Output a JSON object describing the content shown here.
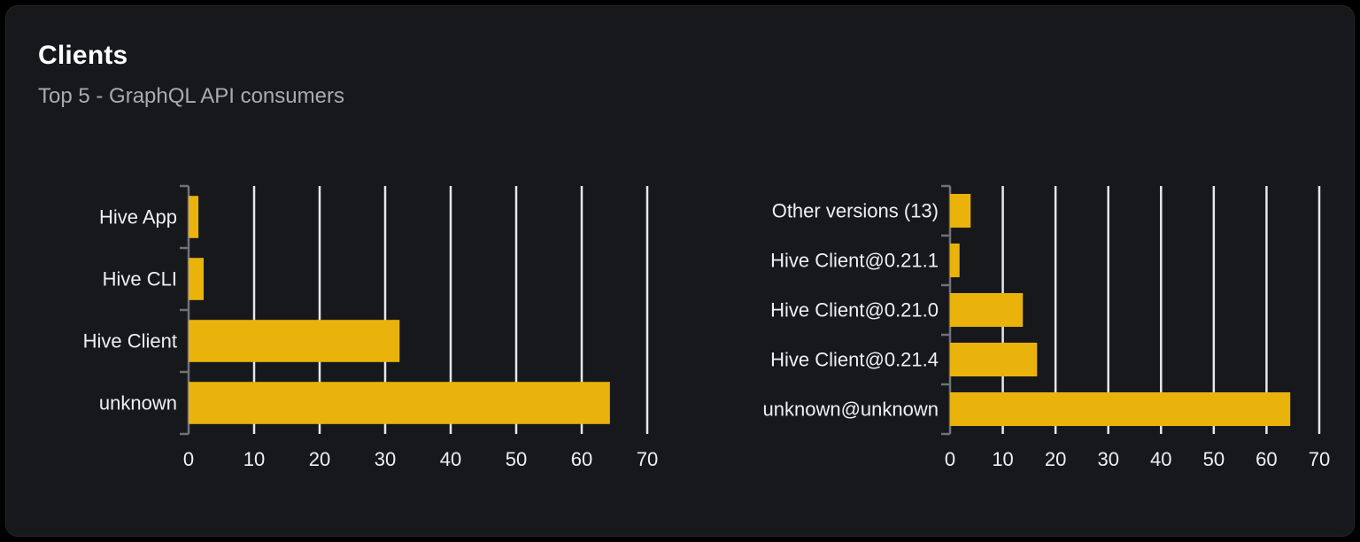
{
  "header": {
    "title": "Clients",
    "subtitle": "Top 5 - GraphQL API consumers"
  },
  "colors": {
    "page_bg": "#000000",
    "card_bg": "#16181c",
    "card_border": "#24262c",
    "title": "#ffffff",
    "subtitle": "#a7acb2",
    "bar": "#eab30c",
    "gridline": "#e5e7eb",
    "axis": "#71717a",
    "label": "#eef0f2"
  },
  "chart_data": [
    {
      "type": "bar",
      "orientation": "horizontal",
      "name": "clients-by-name",
      "categories": [
        "Hive App",
        "Hive CLI",
        "Hive Client",
        "unknown"
      ],
      "values": [
        1.5,
        2.3,
        32.2,
        64.3
      ],
      "xticks": [
        0,
        10,
        20,
        30,
        40,
        50,
        60,
        70
      ],
      "xlim": [
        0,
        70
      ],
      "grid": true,
      "legend": false,
      "xlabel": "",
      "ylabel": ""
    },
    {
      "type": "bar",
      "orientation": "horizontal",
      "name": "clients-by-version",
      "categories": [
        "Other versions (13)",
        "Hive Client@0.21.1",
        "Hive Client@0.21.0",
        "Hive Client@0.21.4",
        "unknown@unknown"
      ],
      "values": [
        3.9,
        1.8,
        13.8,
        16.5,
        64.5
      ],
      "xticks": [
        0,
        10,
        20,
        30,
        40,
        50,
        60,
        70
      ],
      "xlim": [
        0,
        70
      ],
      "grid": true,
      "legend": false,
      "xlabel": "",
      "ylabel": ""
    }
  ]
}
